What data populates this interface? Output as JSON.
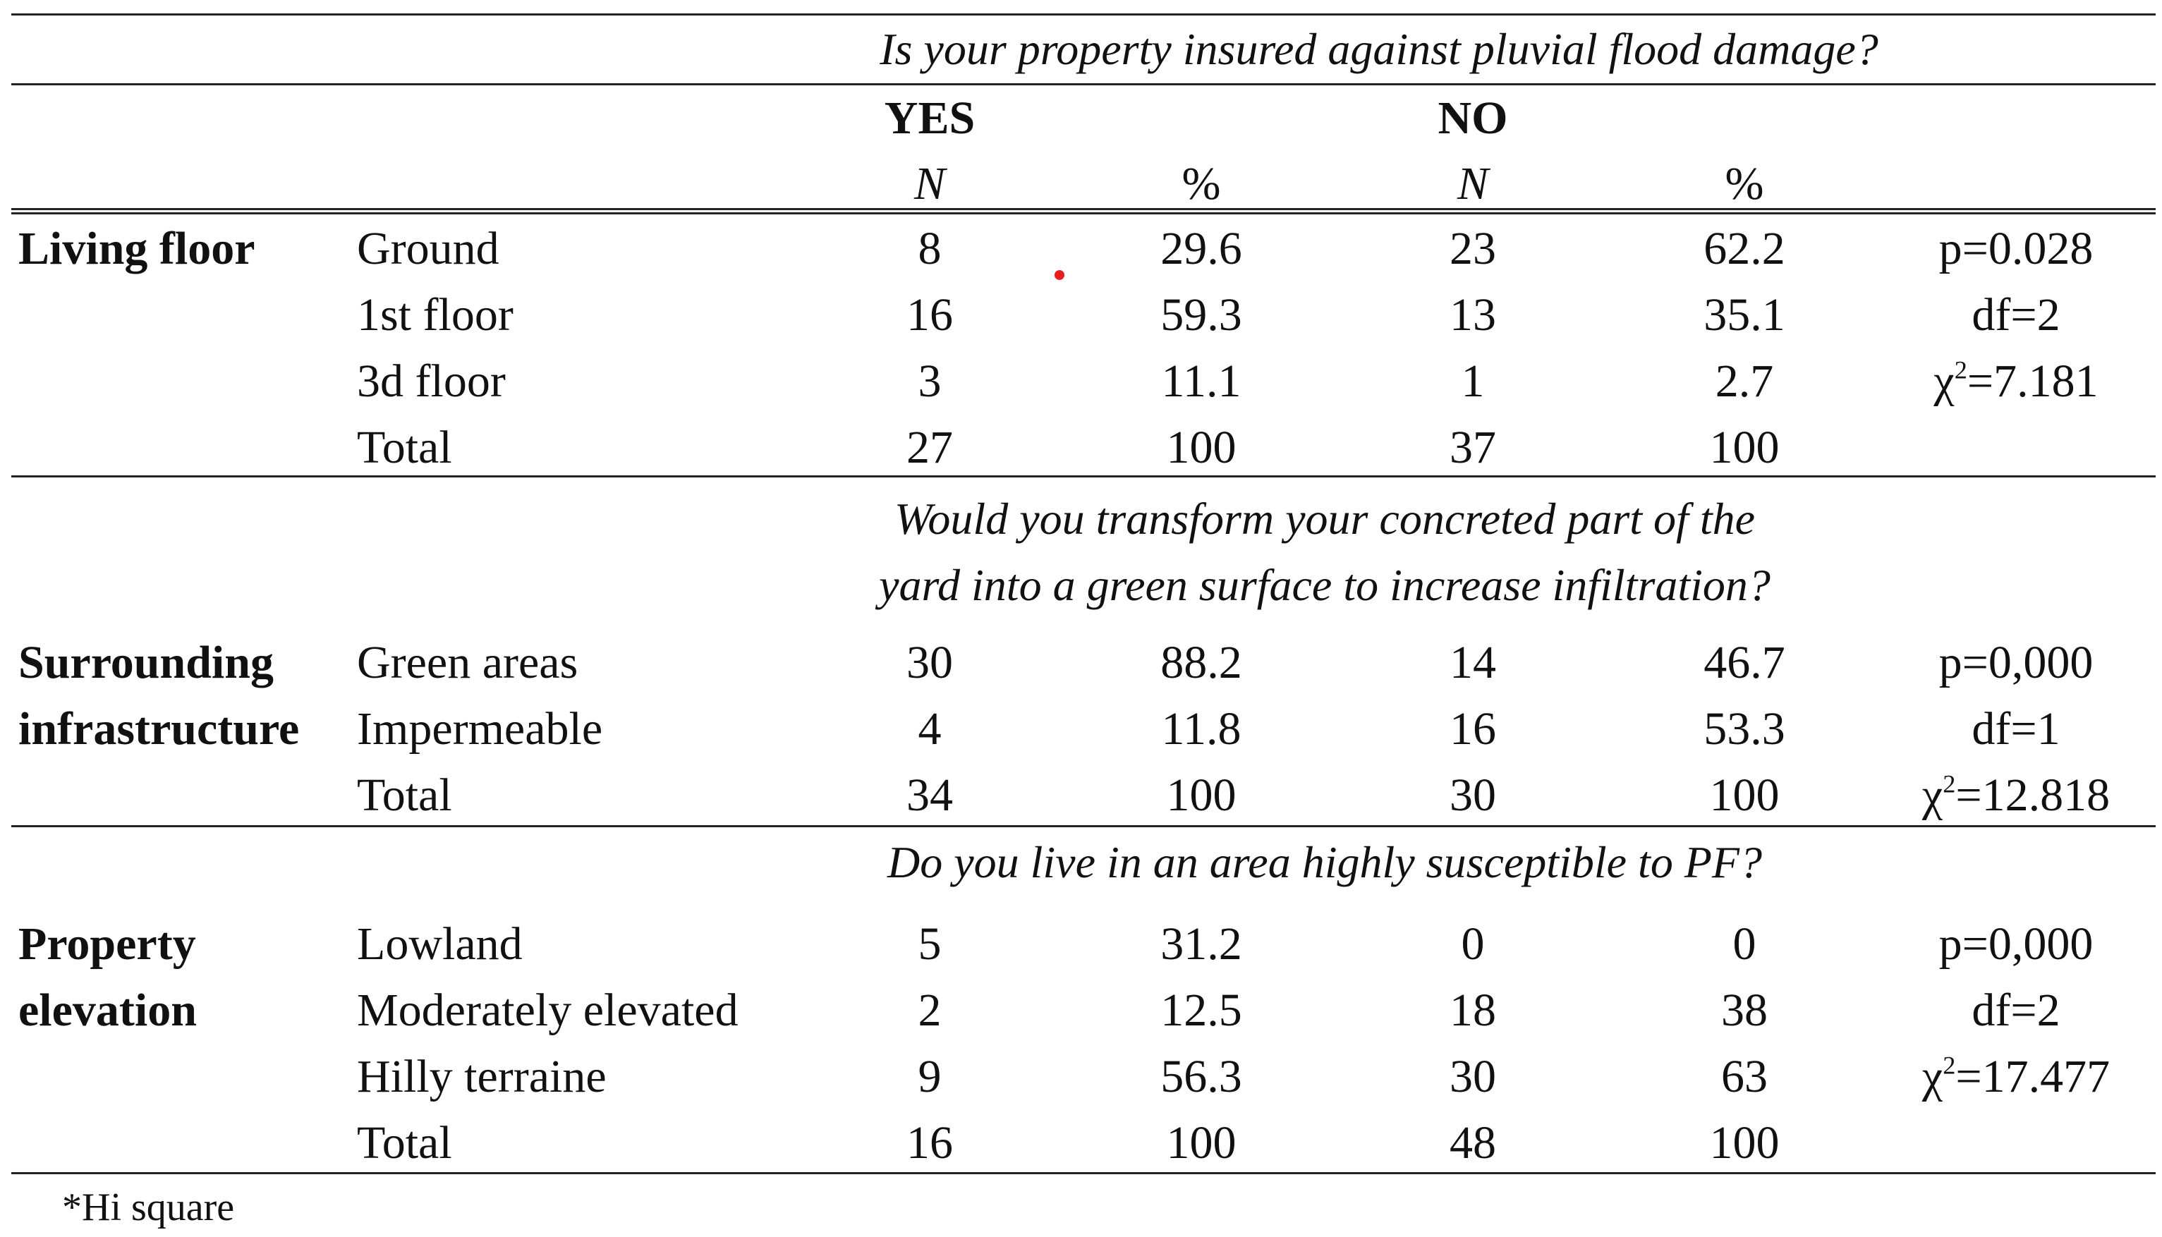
{
  "header": {
    "q1": "Is your property insured against pluvial flood damage?",
    "yes": "YES",
    "no": "NO",
    "n": "N",
    "pct": "%"
  },
  "sections": [
    {
      "label": "Living floor",
      "rows": [
        {
          "name": "Ground",
          "yes_n": "8",
          "yes_pct": "29.6",
          "no_n": "23",
          "no_pct": "62.2",
          "stat": "p=0.028"
        },
        {
          "name": "1st floor",
          "yes_n": "16",
          "yes_pct": "59.3",
          "no_n": "13",
          "no_pct": "35.1",
          "stat": "df=2"
        },
        {
          "name": "3d floor",
          "yes_n": "3",
          "yes_pct": "11.1",
          "no_n": "1",
          "no_pct": "2.7",
          "stat_symbol": "χ",
          "stat_sup": "2",
          "stat_value": "=7.181"
        },
        {
          "name": "Total",
          "yes_n": "27",
          "yes_pct": "100",
          "no_n": "37",
          "no_pct": "100"
        }
      ]
    },
    {
      "question_line1": "Would you transform your concreted part of the",
      "question_line2": "yard into a green surface to increase infiltration?",
      "label_line1": "Surrounding",
      "label_line2": "infrastructure",
      "rows": [
        {
          "name": "Green areas",
          "yes_n": "30",
          "yes_pct": "88.2",
          "no_n": "14",
          "no_pct": "46.7",
          "stat": "p=0,000"
        },
        {
          "name": "Impermeable",
          "yes_n": "4",
          "yes_pct": "11.8",
          "no_n": "16",
          "no_pct": "53.3",
          "stat": "df=1"
        },
        {
          "name": "Total",
          "yes_n": "34",
          "yes_pct": "100",
          "no_n": "30",
          "no_pct": "100",
          "stat_symbol": "χ",
          "stat_sup": "2",
          "stat_value": "=12.818"
        }
      ]
    },
    {
      "question": "Do you live in an area highly susceptible to PF?",
      "label_line1": "Property",
      "label_line2": "elevation",
      "rows": [
        {
          "name": "Lowland",
          "yes_n": "5",
          "yes_pct": "31.2",
          "no_n": "0",
          "no_pct": "0",
          "stat": "p=0,000"
        },
        {
          "name": "Moderately elevated",
          "yes_n": "2",
          "yes_pct": "12.5",
          "no_n": "18",
          "no_pct": "38",
          "stat": "df=2"
        },
        {
          "name": "Hilly terraine",
          "yes_n": "9",
          "yes_pct": "56.3",
          "no_n": "30",
          "no_pct": "63",
          "stat_symbol": "χ",
          "stat_sup": "2",
          "stat_value": "=17.477"
        },
        {
          "name": "Total",
          "yes_n": "16",
          "yes_pct": "100",
          "no_n": "48",
          "no_pct": "100"
        }
      ]
    }
  ],
  "footnote": "*Hi square",
  "marker_color": "#e81e1e"
}
